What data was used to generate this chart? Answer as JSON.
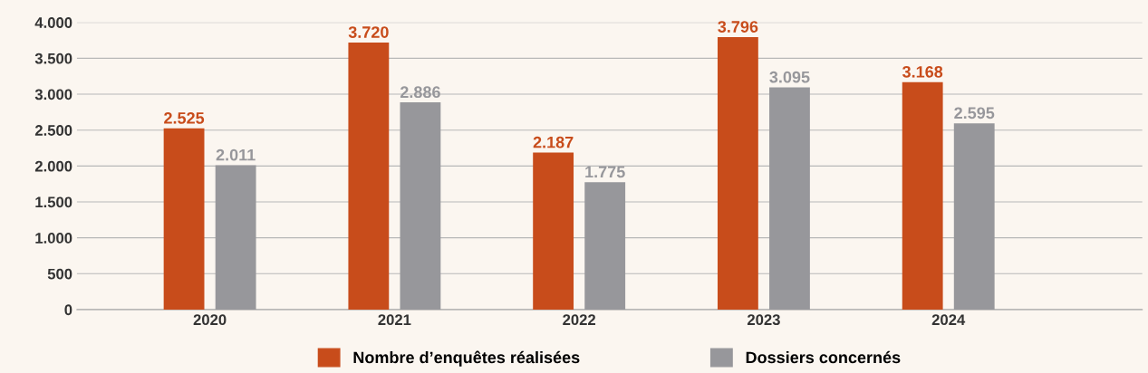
{
  "chart_data": {
    "type": "bar",
    "categories": [
      "2020",
      "2021",
      "2022",
      "2023",
      "2024"
    ],
    "series": [
      {
        "name": "Nombre d’enquêtes réalisées",
        "color": "#c84c1b",
        "values": [
          2525,
          3720,
          2187,
          3796,
          3168
        ],
        "value_labels": [
          "2.525",
          "3.720",
          "2.187",
          "3.796",
          "3.168"
        ]
      },
      {
        "name": "Dossiers concernés",
        "color": "#97979b",
        "values": [
          2011,
          2886,
          1775,
          3095,
          2595
        ],
        "value_labels": [
          "2.011",
          "2.886",
          "1.775",
          "3.095",
          "2.595"
        ]
      }
    ],
    "ylim": [
      0,
      4000
    ],
    "yticks": [
      {
        "value": 0,
        "label": "0"
      },
      {
        "value": 500,
        "label": "500"
      },
      {
        "value": 1000,
        "label": "1.000"
      },
      {
        "value": 1500,
        "label": "1.500"
      },
      {
        "value": 2000,
        "label": "2.000"
      },
      {
        "value": 2500,
        "label": "2.500"
      },
      {
        "value": 3000,
        "label": "3.000"
      },
      {
        "value": 3500,
        "label": "3.500"
      },
      {
        "value": 4000,
        "label": "4.000"
      }
    ],
    "grid": "y",
    "legend": "bottom"
  }
}
